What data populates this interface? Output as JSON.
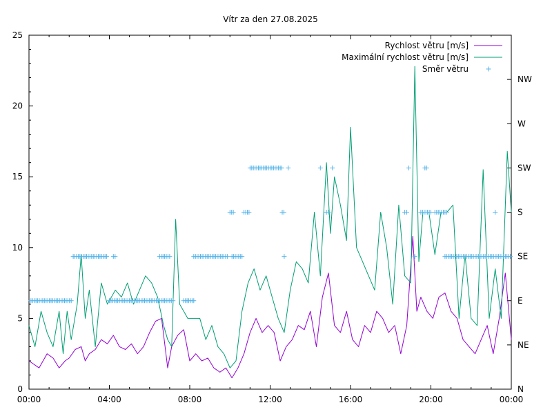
{
  "chart_data": {
    "type": "line",
    "title": "Vítr za den 27.08.2025",
    "x_ticks": [
      "00:00",
      "04:00",
      "08:00",
      "12:00",
      "16:00",
      "20:00",
      "00:00"
    ],
    "x_range_hours": [
      0,
      24
    ],
    "y_left": {
      "range": [
        0,
        25
      ],
      "ticks": [
        "0",
        "5",
        "10",
        "15",
        "20",
        "25"
      ]
    },
    "y_right": {
      "range": [
        0,
        360
      ],
      "ticks": [
        "N",
        "NE",
        "E",
        "SE",
        "S",
        "SW",
        "W",
        "NW"
      ],
      "tick_degrees": [
        0,
        45,
        90,
        135,
        180,
        225,
        270,
        315
      ]
    },
    "grid": false,
    "legend_position": "top-right",
    "series": [
      {
        "name": "Rychlost větru [m/s]",
        "axis": "left",
        "style": "line",
        "color": "#9400d3",
        "x": [
          0.0,
          0.5,
          0.9,
          1.2,
          1.5,
          1.8,
          2.0,
          2.3,
          2.6,
          2.8,
          3.0,
          3.3,
          3.6,
          3.9,
          4.2,
          4.5,
          4.8,
          5.1,
          5.4,
          5.7,
          6.0,
          6.3,
          6.6,
          6.9,
          7.1,
          7.4,
          7.7,
          8.0,
          8.3,
          8.6,
          8.9,
          9.2,
          9.5,
          9.8,
          10.1,
          10.4,
          10.7,
          11.0,
          11.3,
          11.6,
          11.9,
          12.2,
          12.5,
          12.8,
          13.1,
          13.4,
          13.7,
          14.0,
          14.3,
          14.6,
          14.9,
          15.2,
          15.5,
          15.8,
          16.1,
          16.4,
          16.7,
          17.0,
          17.3,
          17.6,
          17.9,
          18.2,
          18.5,
          18.8,
          19.1,
          19.3,
          19.5,
          19.8,
          20.1,
          20.4,
          20.7,
          21.0,
          21.3,
          21.6,
          21.9,
          22.2,
          22.5,
          22.8,
          23.1,
          23.4,
          23.7,
          24.0
        ],
        "y": [
          2.0,
          1.5,
          2.5,
          2.2,
          1.5,
          2.0,
          2.2,
          2.8,
          3.0,
          2.0,
          2.5,
          2.8,
          3.5,
          3.2,
          3.8,
          3.0,
          2.8,
          3.2,
          2.5,
          3.0,
          4.0,
          4.8,
          5.0,
          1.5,
          3.0,
          3.8,
          4.2,
          2.0,
          2.5,
          2.0,
          2.2,
          1.5,
          1.2,
          1.5,
          0.8,
          1.5,
          2.5,
          4.0,
          5.0,
          4.0,
          4.5,
          4.0,
          2.0,
          3.0,
          3.5,
          4.5,
          4.2,
          5.5,
          3.0,
          6.5,
          8.2,
          4.5,
          4.0,
          5.5,
          3.5,
          3.0,
          4.5,
          4.0,
          5.5,
          5.0,
          4.0,
          4.5,
          2.5,
          4.5,
          10.8,
          5.5,
          6.5,
          5.5,
          5.0,
          6.5,
          6.8,
          5.5,
          5.0,
          3.5,
          3.0,
          2.5,
          3.5,
          4.5,
          2.5,
          5.0,
          8.2,
          3.5
        ]
      },
      {
        "name": "Maximální rychlost větru [m/s]",
        "axis": "left",
        "style": "line",
        "color": "#009e73",
        "x": [
          0.0,
          0.3,
          0.6,
          0.9,
          1.2,
          1.5,
          1.7,
          1.9,
          2.1,
          2.4,
          2.6,
          2.8,
          3.0,
          3.3,
          3.6,
          3.9,
          4.1,
          4.3,
          4.6,
          4.9,
          5.2,
          5.5,
          5.8,
          6.1,
          6.4,
          6.7,
          6.9,
          7.1,
          7.3,
          7.5,
          7.7,
          7.9,
          8.2,
          8.5,
          8.8,
          9.1,
          9.4,
          9.7,
          10.0,
          10.3,
          10.6,
          10.9,
          11.2,
          11.5,
          11.8,
          12.1,
          12.4,
          12.7,
          13.0,
          13.3,
          13.6,
          13.9,
          14.2,
          14.5,
          14.8,
          15.0,
          15.2,
          15.5,
          15.8,
          16.0,
          16.3,
          16.6,
          16.9,
          17.2,
          17.5,
          17.8,
          18.1,
          18.4,
          18.7,
          19.0,
          19.2,
          19.4,
          19.6,
          19.9,
          20.2,
          20.5,
          20.8,
          21.1,
          21.4,
          21.7,
          22.0,
          22.3,
          22.6,
          22.9,
          23.2,
          23.5,
          23.8,
          24.0
        ],
        "y": [
          4.5,
          3.0,
          5.5,
          4.0,
          3.0,
          5.5,
          2.5,
          5.5,
          3.5,
          6.0,
          9.5,
          5.0,
          7.0,
          3.0,
          7.5,
          6.0,
          6.5,
          7.0,
          6.5,
          7.5,
          6.0,
          7.0,
          8.0,
          7.5,
          6.5,
          4.5,
          3.5,
          3.0,
          12.0,
          6.0,
          5.5,
          5.0,
          5.0,
          5.0,
          3.5,
          4.5,
          3.0,
          2.5,
          1.5,
          2.0,
          5.5,
          7.5,
          8.5,
          7.0,
          8.0,
          6.5,
          5.0,
          4.0,
          7.0,
          9.0,
          8.5,
          7.5,
          12.5,
          8.0,
          16.0,
          11.0,
          15.0,
          13.0,
          10.5,
          18.5,
          10.0,
          9.0,
          8.0,
          7.0,
          12.5,
          10.0,
          6.0,
          13.0,
          8.0,
          7.5,
          22.8,
          9.0,
          12.5,
          12.5,
          9.5,
          12.5,
          12.5,
          13.0,
          5.0,
          9.5,
          5.0,
          4.5,
          15.5,
          5.0,
          8.5,
          5.0,
          16.8,
          12.5
        ]
      },
      {
        "name": "Směr větru",
        "axis": "right",
        "style": "points",
        "color": "#56b4e9",
        "points": [
          [
            0.1,
            90
          ],
          [
            2.1,
            90
          ],
          [
            2.2,
            135
          ],
          [
            3.9,
            135
          ],
          [
            4.2,
            135
          ],
          [
            4.3,
            135
          ],
          [
            4.0,
            90
          ],
          [
            7.2,
            90
          ],
          [
            6.5,
            135
          ],
          [
            7.0,
            135
          ],
          [
            7.7,
            90
          ],
          [
            8.2,
            90
          ],
          [
            8.2,
            135
          ],
          [
            9.9,
            135
          ],
          [
            10.0,
            180
          ],
          [
            10.2,
            180
          ],
          [
            10.1,
            135
          ],
          [
            10.6,
            135
          ],
          [
            10.7,
            180
          ],
          [
            11.0,
            180
          ],
          [
            11.0,
            225
          ],
          [
            12.6,
            225
          ],
          [
            12.6,
            180
          ],
          [
            12.7,
            180
          ],
          [
            12.7,
            135
          ],
          [
            12.9,
            225
          ],
          [
            14.5,
            225
          ],
          [
            14.8,
            180
          ],
          [
            14.9,
            180
          ],
          [
            15.1,
            225
          ],
          [
            18.9,
            225
          ],
          [
            18.7,
            180
          ],
          [
            18.8,
            180
          ],
          [
            19.2,
            135
          ],
          [
            19.5,
            180
          ],
          [
            20.0,
            180
          ],
          [
            19.7,
            225
          ],
          [
            19.8,
            225
          ],
          [
            20.2,
            180
          ],
          [
            20.8,
            180
          ],
          [
            20.7,
            135
          ],
          [
            24.0,
            135
          ],
          [
            23.2,
            180
          ]
        ]
      }
    ]
  }
}
